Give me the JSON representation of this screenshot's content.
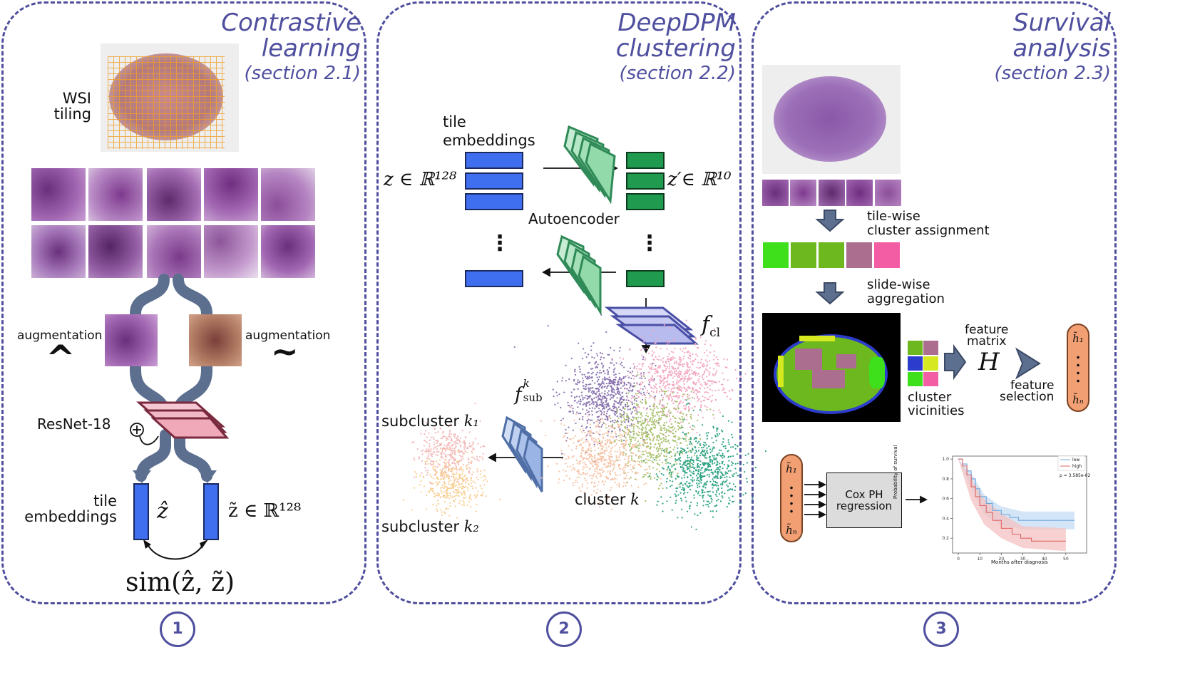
{
  "colors": {
    "panel_border": "#4f4f9f",
    "embedding_blue": "#3f6fee",
    "latent_green": "#1f9a4e",
    "arrow_gray": "#5d6f8f",
    "hist_purple": "#a267b2",
    "hist_dark": "#6a2f7c",
    "resnet_pink": "#d98aa0",
    "autoencoder_green": "#8fd8a8",
    "cluster_lavender": "#b8bbee",
    "subcluster_blue": "#a9bfe8",
    "feature_orange": "#f2a073"
  },
  "panel1": {
    "title_line1": "Contrastive",
    "title_line2": "learning",
    "section": "(section 2.1)",
    "wsi_label_line1": "WSI",
    "wsi_label_line2": "tiling",
    "aug_left": "augmentation",
    "aug_right": "augmentation",
    "hat_symbol": "^",
    "tilde_symbol": "~",
    "resnet": "ResNet-18",
    "emb_line1": "tile",
    "emb_line2": "embeddings",
    "zhat": "ẑ",
    "ztilde": "z̃ ∈ ℝ¹²⁸",
    "sim": "sim(ẑ, z̃)",
    "number": "1"
  },
  "panel2": {
    "title_line1": "DeepDPM",
    "title_line2": "clustering",
    "section": "(section 2.2)",
    "emb_line1": "tile",
    "emb_line2": "embeddings",
    "z_in": "z ∈ ℝ¹²⁸",
    "z_out": "z′∈ ℝ¹⁰",
    "autoencoder": "Autoencoder",
    "vdots": "⋮",
    "f_cl": "f",
    "f_cl_sub": "cl",
    "f_sub": "f",
    "f_sub_sup": "k",
    "f_sub_sub": "sub",
    "subcluster1": "subcluster",
    "k1": "k₁",
    "subcluster2": "subcluster",
    "k2": "k₂",
    "cluster": "cluster",
    "k": "k",
    "number": "2"
  },
  "panel3": {
    "title_line1": "Survival",
    "title_line2": "analysis",
    "section": "(section 2.3)",
    "tilewise_line1": "tile-wise",
    "tilewise_line2": "cluster assignment",
    "slidewise_line1": "slide-wise",
    "slidewise_line2": "aggregation",
    "cluster_line1": "cluster",
    "cluster_line2": "vicinities",
    "feature_line1": "feature",
    "feature_line2": "matrix",
    "H": "H",
    "selection_line1": "feature",
    "selection_line2": "selection",
    "h1": "h̃₁",
    "hn": "h̃ₙ",
    "cox_line1": "Cox PH",
    "cox_line2": "regression",
    "number": "3",
    "assignment_colors": [
      "#3ee01b",
      "#6cb81e",
      "#6cb81e",
      "#ab6e8f",
      "#f25da4"
    ],
    "vicinity_colors": [
      "#6cb81e",
      "#ab6e8f",
      "#2c3ccc",
      "#d6e81f",
      "#3ee01b",
      "#f25da4"
    ]
  },
  "km_plot": {
    "ylabel": "Probability of survival",
    "xlabel": "Months after diagnosis",
    "legend_low": "low",
    "legend_high": "high",
    "pvalue": "p = 3.585e-02",
    "xticks": [
      "0",
      "10",
      "20",
      "30",
      "40",
      "50"
    ],
    "yticks": [
      "1.0",
      "0.8",
      "0.6",
      "0.4",
      "0.2"
    ],
    "low_color": "#6fa8dc",
    "high_color": "#e06666"
  }
}
